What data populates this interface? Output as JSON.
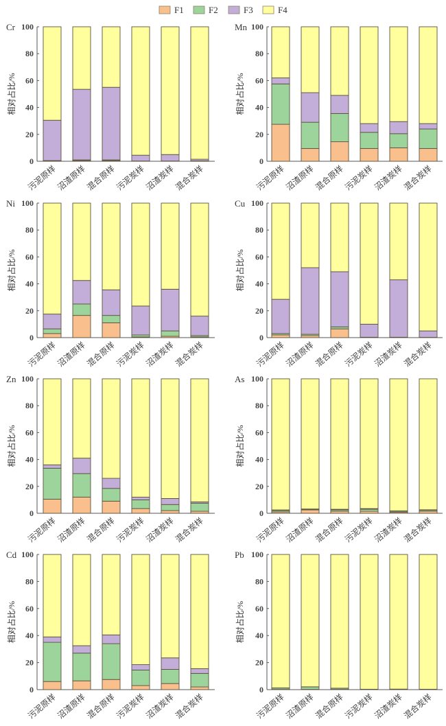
{
  "chart_data": {
    "type": "bar",
    "stacked": true,
    "ylabel": "相对占比/%",
    "ylim": [
      0,
      100
    ],
    "yticks": [
      "0",
      "20",
      "40",
      "60",
      "80",
      "100"
    ],
    "categories": [
      "污泥原样",
      "沼渣原样",
      "混合原样",
      "污泥炭样",
      "沼渣炭样",
      "混合炭样"
    ],
    "legend": {
      "placement": "top-center",
      "entries": [
        {
          "name": "F1",
          "color": "#F9C08E"
        },
        {
          "name": "F2",
          "color": "#9DD49C"
        },
        {
          "name": "F3",
          "color": "#C2AED8"
        },
        {
          "name": "F4",
          "color": "#FFFF9E"
        }
      ]
    },
    "panels": [
      {
        "title": "Cr",
        "series": [
          {
            "name": "F1",
            "values": [
              0.3,
              0.5,
              0.5,
              0.1,
              0.1,
              0.1
            ]
          },
          {
            "name": "F2",
            "values": [
              0.2,
              0.5,
              0.5,
              0.1,
              0.1,
              0.2
            ]
          },
          {
            "name": "F3",
            "values": [
              30.0,
              52.5,
              54.0,
              4.3,
              4.8,
              1.2
            ]
          },
          {
            "name": "F4",
            "values": [
              69.5,
              46.5,
              45.0,
              95.5,
              95.0,
              98.5
            ]
          }
        ]
      },
      {
        "title": "Mn",
        "series": [
          {
            "name": "F1",
            "values": [
              27.5,
              9.5,
              14.5,
              9.5,
              10.0,
              9.5
            ]
          },
          {
            "name": "F2",
            "values": [
              30.0,
              19.5,
              21.0,
              12.0,
              10.5,
              14.5
            ]
          },
          {
            "name": "F3",
            "values": [
              4.5,
              22.0,
              13.5,
              6.5,
              9.0,
              4.0
            ]
          },
          {
            "name": "F4",
            "values": [
              38.0,
              49.0,
              51.0,
              72.0,
              70.5,
              72.0
            ]
          }
        ]
      },
      {
        "title": "Ni",
        "series": [
          {
            "name": "F1",
            "values": [
              3.0,
              16.5,
              11.0,
              0.5,
              1.0,
              0.5
            ]
          },
          {
            "name": "F2",
            "values": [
              3.5,
              8.5,
              5.5,
              1.5,
              4.0,
              1.0
            ]
          },
          {
            "name": "F3",
            "values": [
              11.0,
              17.5,
              19.0,
              21.5,
              31.0,
              14.5
            ]
          },
          {
            "name": "F4",
            "values": [
              82.5,
              57.5,
              64.5,
              76.5,
              64.0,
              84.0
            ]
          }
        ]
      },
      {
        "title": "Cu",
        "series": [
          {
            "name": "F1",
            "values": [
              2.0,
              1.5,
              6.5,
              0.1,
              0.1,
              0.1
            ]
          },
          {
            "name": "F2",
            "values": [
              1.0,
              1.0,
              1.5,
              0.2,
              0.2,
              0.1
            ]
          },
          {
            "name": "F3",
            "values": [
              25.5,
              49.5,
              41.0,
              9.7,
              42.7,
              4.8
            ]
          },
          {
            "name": "F4",
            "values": [
              71.5,
              48.0,
              51.0,
              90.0,
              57.0,
              95.0
            ]
          }
        ]
      },
      {
        "title": "Zn",
        "series": [
          {
            "name": "F1",
            "values": [
              10.5,
              12.0,
              9.0,
              3.5,
              2.0,
              1.5
            ]
          },
          {
            "name": "F2",
            "values": [
              23.0,
              17.5,
              9.5,
              6.5,
              4.5,
              6.0
            ]
          },
          {
            "name": "F3",
            "values": [
              2.5,
              11.5,
              7.5,
              2.0,
              4.5,
              1.0
            ]
          },
          {
            "name": "F4",
            "values": [
              64.0,
              59.0,
              74.0,
              88.0,
              89.0,
              91.5
            ]
          }
        ]
      },
      {
        "title": "As",
        "series": [
          {
            "name": "F1",
            "values": [
              1.0,
              2.5,
              1.5,
              1.5,
              0.8,
              1.5
            ]
          },
          {
            "name": "F2",
            "values": [
              1.0,
              0.5,
              1.0,
              1.5,
              0.7,
              0.8
            ]
          },
          {
            "name": "F3",
            "values": [
              0.5,
              0.2,
              0.5,
              0.5,
              0.3,
              0.3
            ]
          },
          {
            "name": "F4",
            "values": [
              97.5,
              96.8,
              97.0,
              96.5,
              98.2,
              97.4
            ]
          }
        ]
      },
      {
        "title": "Cd",
        "series": [
          {
            "name": "F1",
            "values": [
              6.0,
              6.5,
              7.5,
              3.0,
              4.5,
              2.0
            ]
          },
          {
            "name": "F2",
            "values": [
              29.0,
              20.5,
              26.5,
              11.5,
              10.5,
              10.0
            ]
          },
          {
            "name": "F3",
            "values": [
              4.0,
              5.5,
              6.5,
              4.0,
              8.5,
              3.5
            ]
          },
          {
            "name": "F4",
            "values": [
              61.0,
              67.5,
              59.5,
              81.5,
              76.5,
              84.5
            ]
          }
        ]
      },
      {
        "title": "Pb",
        "series": [
          {
            "name": "F1",
            "values": [
              0.2,
              0.2,
              0.2,
              0.1,
              0.1,
              0.1
            ]
          },
          {
            "name": "F2",
            "values": [
              1.0,
              1.8,
              0.8,
              0.2,
              0.2,
              0.2
            ]
          },
          {
            "name": "F3",
            "values": [
              0.1,
              0.1,
              0.1,
              0.0,
              0.1,
              0.0
            ]
          },
          {
            "name": "F4",
            "values": [
              98.7,
              97.9,
              98.9,
              99.7,
              99.6,
              99.7
            ]
          }
        ]
      }
    ]
  }
}
